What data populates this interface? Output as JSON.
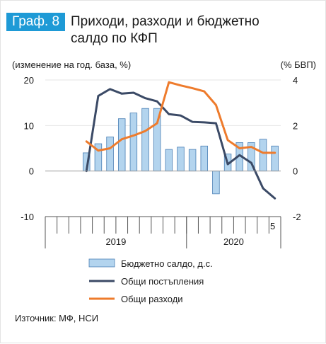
{
  "header": {
    "badge": "Граф. 8",
    "title_line1": "Приходи, разходи и бюджетно",
    "title_line2": "салдо по КФП"
  },
  "chart_data": {
    "type": "bar+line",
    "left_axis_label": "(изменение на год. база, %)",
    "right_axis_label": "(% БВП)",
    "left_ylim": [
      -10,
      20
    ],
    "left_ticks": [
      "20",
      "10",
      "0",
      "-10"
    ],
    "right_ylim": [
      -2,
      4
    ],
    "right_ticks": [
      "4",
      "2",
      "0",
      "-2"
    ],
    "x_months": 20,
    "year_labels": [
      {
        "label": "2019",
        "months": 12
      },
      {
        "label": "2020",
        "months": 8
      }
    ],
    "last_month_label": "5",
    "bars": {
      "name": "Бюджетно салдо, д.с.",
      "axis": "right",
      "color": "#b3d4ee",
      "values": [
        0.8,
        1.2,
        1.5,
        2.3,
        2.55,
        2.75,
        2.75,
        0.95,
        1.05,
        0.95,
        1.1,
        -1.0,
        0.75,
        1.25,
        1.25,
        1.4,
        1.1
      ]
    },
    "series": [
      {
        "name": "Общи постъпления",
        "axis": "left",
        "color": "#3b4a66",
        "values": [
          0,
          16.5,
          18,
          17,
          17.2,
          16,
          15.3,
          12.5,
          12.2,
          10.8,
          10.7,
          10.5,
          1.5,
          3.5,
          1.8,
          -3.8,
          -6
        ]
      },
      {
        "name": "Общи разходи",
        "axis": "left",
        "color": "#ee7b2c",
        "values": [
          6.5,
          4.5,
          5,
          7,
          7.8,
          8.8,
          10.5,
          19.5,
          18.8,
          18.2,
          17.5,
          14.5,
          6.8,
          5,
          5.3,
          4,
          4
        ]
      }
    ],
    "legend_position": "bottom"
  },
  "source": "Източник: МФ, НСИ"
}
